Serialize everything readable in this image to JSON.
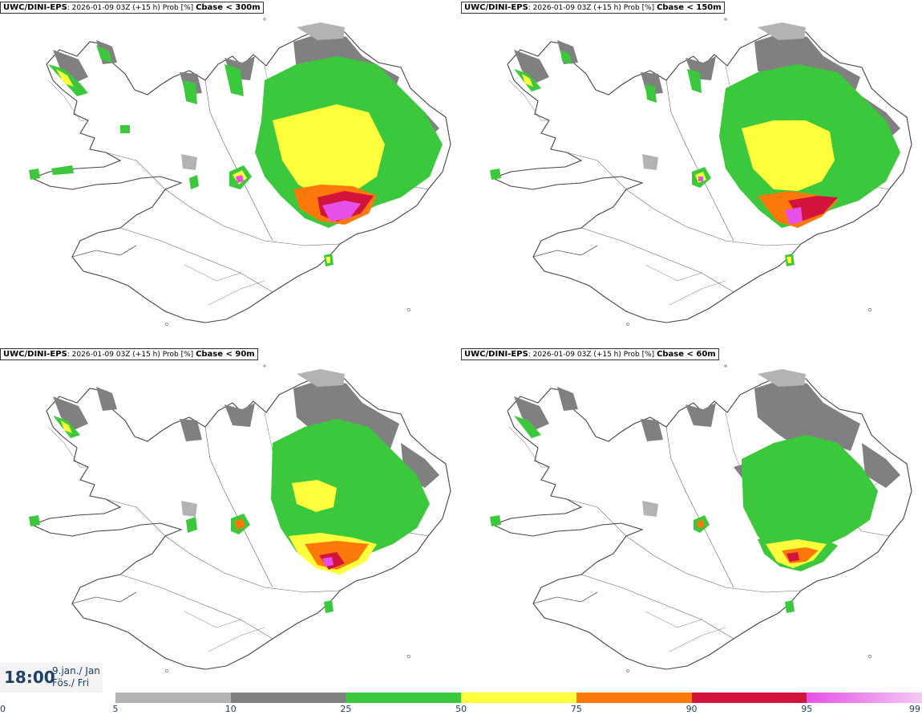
{
  "panels": [
    {
      "model": "UWC/DINI-EPS",
      "info": "2026-01-09 03Z (+15 h) Prob [%]",
      "threshold": "Cbase < 300m"
    },
    {
      "model": "UWC/DINI-EPS",
      "info": "2026-01-09 03Z (+15 h) Prob [%]",
      "threshold": "Cbase < 150m"
    },
    {
      "model": "UWC/DINI-EPS",
      "info": "2026-01-09 03Z (+15 h) Prob [%]",
      "threshold": "Cbase < 90m"
    },
    {
      "model": "UWC/DINI-EPS",
      "info": "2026-01-09 03Z (+15 h) Prob [%]",
      "threshold": "Cbase < 60m"
    }
  ],
  "valid_time": {
    "time": "18:00",
    "date_line1": "9.jan./ Jan",
    "date_line2": "Fös./ Fri"
  },
  "legend": {
    "ticks": [
      "0",
      "5",
      "10",
      "25",
      "50",
      "75",
      "90",
      "95",
      "99"
    ],
    "segments": [
      {
        "from": 5,
        "to": 10,
        "color": "#b3b3b3"
      },
      {
        "from": 10,
        "to": 25,
        "color": "#808080"
      },
      {
        "from": 25,
        "to": 50,
        "color": "#3cc83c"
      },
      {
        "from": 50,
        "to": 75,
        "color": "#ffff3c"
      },
      {
        "from": 75,
        "to": 90,
        "color": "#ff780a"
      },
      {
        "from": 90,
        "to": 95,
        "color": "#d2143c"
      },
      {
        "from": 95,
        "to": 99,
        "color": "#e650e6",
        "color_end": "#f5c8f5"
      }
    ]
  }
}
